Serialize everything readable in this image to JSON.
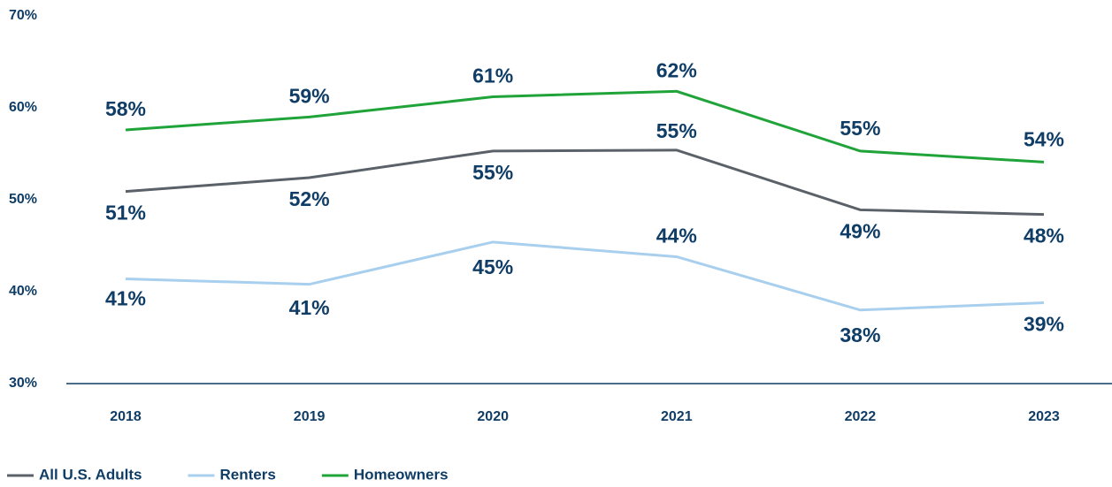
{
  "chart_data": {
    "type": "line",
    "categories": [
      "2018",
      "2019",
      "2020",
      "2021",
      "2022",
      "2023"
    ],
    "series": [
      {
        "name": "All U.S. Adults",
        "color": "#5b6168",
        "values": [
          50.9,
          52.4,
          55.3,
          55.4,
          48.9,
          48.4
        ],
        "value_labels": [
          "51%",
          "52%",
          "55%",
          "55%",
          "49%",
          "48%"
        ]
      },
      {
        "name": "Renters",
        "color": "#a8cfee",
        "values": [
          41.4,
          40.8,
          45.4,
          43.8,
          38.0,
          38.8
        ],
        "value_labels": [
          "41%",
          "41%",
          "45%",
          "44%",
          "38%",
          "39%"
        ]
      },
      {
        "name": "Homeowners",
        "color": "#20a43a",
        "values": [
          57.6,
          59.0,
          61.2,
          61.8,
          55.3,
          54.1
        ],
        "value_labels": [
          "58%",
          "59%",
          "61%",
          "62%",
          "55%",
          "54%"
        ]
      }
    ],
    "ylim": [
      30,
      70
    ],
    "yticks": [
      {
        "value": 30,
        "label": "30%"
      },
      {
        "value": 40,
        "label": "40%"
      },
      {
        "value": 50,
        "label": "50%"
      },
      {
        "value": 60,
        "label": "60%"
      },
      {
        "value": 70,
        "label": "70%"
      }
    ],
    "grid": false,
    "legend": "bottom-left"
  }
}
